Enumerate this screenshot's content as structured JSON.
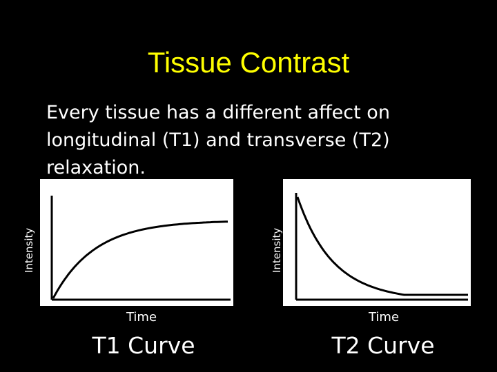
{
  "slide": {
    "title": "Tissue Contrast",
    "body_text": "Every tissue has a different affect on longitudinal (T1) and transverse (T2) relaxation.",
    "title_color": "#ffff00",
    "background_color": "#000000",
    "text_color": "#ffffff"
  },
  "charts": [
    {
      "id": "t1",
      "caption": "T1 Curve",
      "xlabel": "Time",
      "ylabel": "Intensity",
      "curve": "recovery"
    },
    {
      "id": "t2",
      "caption": "T2 Curve",
      "xlabel": "Time",
      "ylabel": "Intensity",
      "curve": "decay"
    }
  ]
}
